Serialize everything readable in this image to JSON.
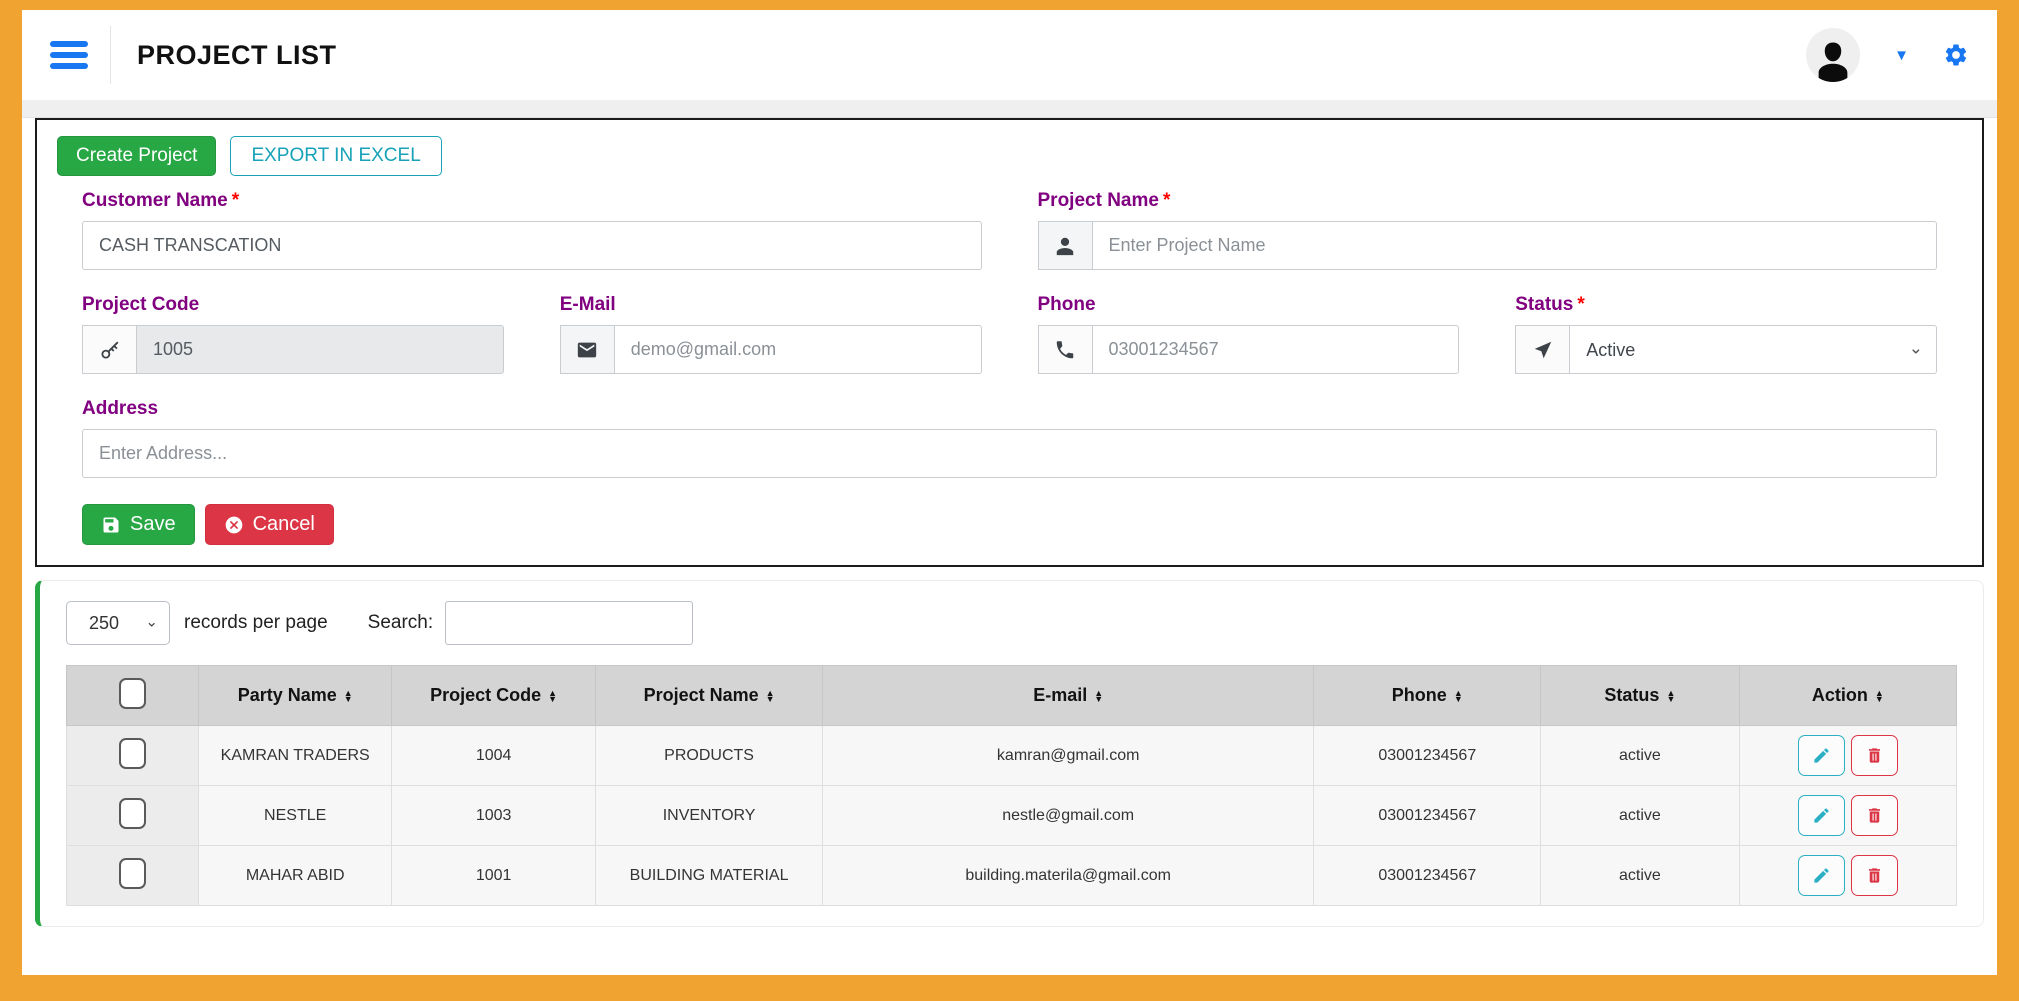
{
  "header": {
    "title": "PROJECT LIST"
  },
  "toolbar": {
    "create_label": "Create Project",
    "export_label": "EXPORT IN EXCEL"
  },
  "form": {
    "customer_name": {
      "label": "Customer Name",
      "required": "*",
      "value": "CASH TRANSCATION"
    },
    "project_name": {
      "label": "Project Name",
      "required": "*",
      "placeholder": "Enter Project Name"
    },
    "project_code": {
      "label": "Project Code",
      "value": "1005"
    },
    "email": {
      "label": "E-Mail",
      "placeholder": "demo@gmail.com"
    },
    "phone": {
      "label": "Phone",
      "placeholder": "03001234567"
    },
    "status": {
      "label": "Status",
      "required": "*",
      "selected": "Active"
    },
    "address": {
      "label": "Address",
      "placeholder": "Enter Address..."
    },
    "save_label": "Save",
    "cancel_label": "Cancel"
  },
  "table_controls": {
    "page_size": "250",
    "records_text": "records per page",
    "search_label": "Search:",
    "search_value": ""
  },
  "table": {
    "headers": [
      "Party Name",
      "Project Code",
      "Project Name",
      "E-mail",
      "Phone",
      "Status",
      "Action"
    ],
    "rows": [
      {
        "party": "KAMRAN TRADERS",
        "code": "1004",
        "project": "PRODUCTS",
        "email": "kamran@gmail.com",
        "phone": "03001234567",
        "status": "active"
      },
      {
        "party": "NESTLE",
        "code": "1003",
        "project": "INVENTORY",
        "email": "nestle@gmail.com",
        "phone": "03001234567",
        "status": "active"
      },
      {
        "party": "MAHAR ABID",
        "code": "1001",
        "project": "BUILDING MATERIAL",
        "email": "building.materila@gmail.com",
        "phone": "03001234567",
        "status": "active"
      }
    ]
  },
  "colors": {
    "frame_orange": "#F0A330",
    "accent_blue": "#1977F2",
    "accent_green": "#28a745",
    "accent_teal": "#17a2b8",
    "accent_red": "#dc3545",
    "label_purple": "#800080",
    "table_header_gray": "#d4d4d4"
  }
}
